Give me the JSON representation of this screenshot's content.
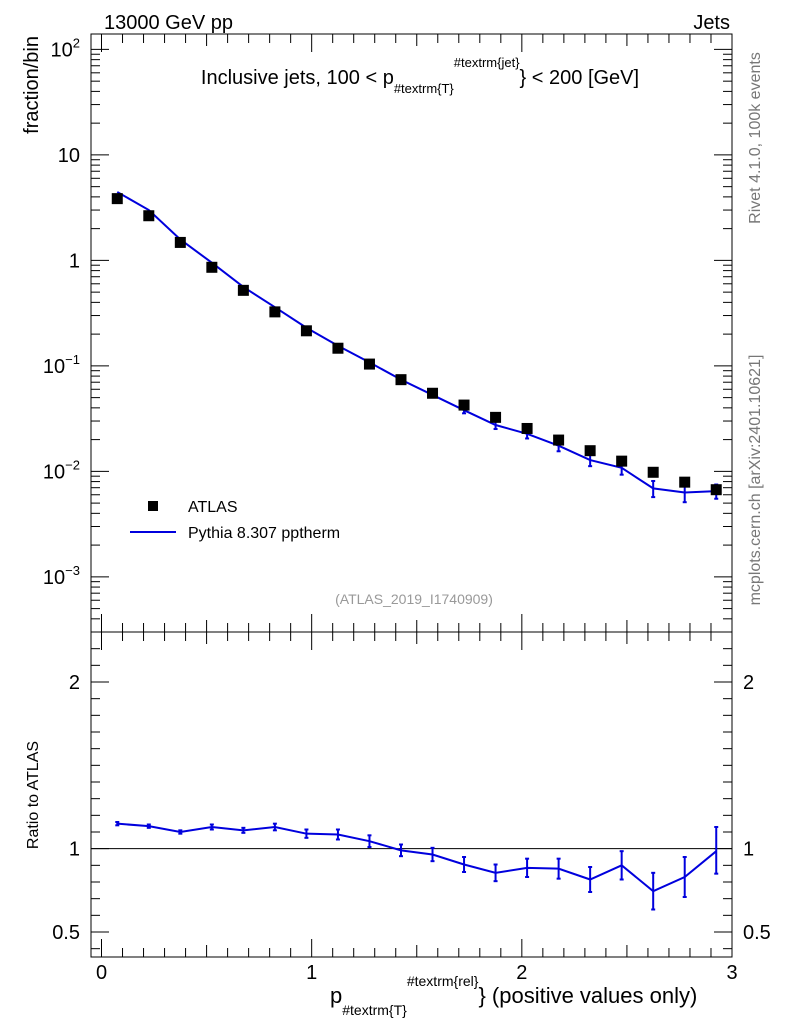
{
  "header": {
    "left": "13000 GeV pp",
    "right": "Jets"
  },
  "side_text": {
    "version": "Rivet 4.1.0,  100k events",
    "url": "mcplots.cern.ch [arXiv:2401.10621]"
  },
  "colors": {
    "data": "#000000",
    "mc": "#0000dd",
    "ref_line": "#000000",
    "analysis_label": "#999999"
  },
  "chart_data": [
    {
      "type": "scatter",
      "panel": "main",
      "scale": "log",
      "title": "Inclusive jets, 100 < p_{#textrm{T}}^{#textrm{jet}} < 200 [GeV]",
      "title_parts": {
        "pre": "Inclusive jets, 100 < p",
        "sub": "#textrm{T}",
        "sup": "#textrm{jet}",
        "post": "} < 200 [GeV]"
      },
      "ylabel": "fraction/bin",
      "ylim": [
        0.0003,
        140
      ],
      "xlim": [
        -0.05,
        3.0
      ],
      "analysis": "(ATLAS_2019_I1740909)",
      "y_ticks": [
        {
          "v": 0.001,
          "base": "10",
          "exp": "−3"
        },
        {
          "v": 0.01,
          "base": "10",
          "exp": "−2"
        },
        {
          "v": 0.1,
          "base": "10",
          "exp": "−1"
        },
        {
          "v": 1,
          "base": "1",
          "exp": ""
        },
        {
          "v": 10,
          "base": "10",
          "exp": ""
        },
        {
          "v": 100,
          "base": "10",
          "exp": "2"
        }
      ],
      "legend": [
        {
          "label": "ATLAS",
          "marker": "square"
        },
        {
          "label": "Pythia 8.307 pptherm",
          "marker": "line"
        }
      ],
      "x": [
        0.075,
        0.225,
        0.375,
        0.525,
        0.675,
        0.825,
        0.975,
        1.125,
        1.275,
        1.425,
        1.575,
        1.725,
        1.875,
        2.025,
        2.175,
        2.325,
        2.475,
        2.625,
        2.775,
        2.925
      ],
      "series": [
        {
          "name": "ATLAS",
          "values": [
            3.85,
            2.65,
            1.48,
            0.86,
            0.52,
            0.325,
            0.215,
            0.147,
            0.104,
            0.074,
            0.055,
            0.0425,
            0.0325,
            0.0255,
            0.0198,
            0.0157,
            0.0125,
            0.0098,
            0.0079,
            0.0067
          ]
        },
        {
          "name": "Pythia 8.307 pptherm",
          "values": [
            4.45,
            3.0,
            1.58,
            0.95,
            0.56,
            0.36,
            0.23,
            0.155,
            0.108,
            0.074,
            0.053,
            0.038,
            0.0275,
            0.0227,
            0.0175,
            0.0128,
            0.0108,
            0.0069,
            0.0063,
            0.0065
          ],
          "err_low": [
            4.4,
            2.97,
            1.56,
            0.94,
            0.553,
            0.354,
            0.225,
            0.151,
            0.105,
            0.0715,
            0.051,
            0.0355,
            0.0252,
            0.0205,
            0.0155,
            0.0112,
            0.0093,
            0.0057,
            0.0051,
            0.0055
          ],
          "err_high": [
            4.5,
            3.03,
            1.6,
            0.96,
            0.567,
            0.366,
            0.235,
            0.159,
            0.111,
            0.0765,
            0.055,
            0.0405,
            0.0298,
            0.0249,
            0.0195,
            0.0144,
            0.0123,
            0.0081,
            0.0075,
            0.0075
          ]
        }
      ]
    },
    {
      "type": "line",
      "panel": "ratio",
      "ylabel": "Ratio to ATLAS",
      "ylim": [
        0.35,
        2.3
      ],
      "xlim": [
        -0.05,
        3.0
      ],
      "y_ticks": [
        "0.5",
        "1",
        "2"
      ],
      "x_ticks": [
        "0",
        "1",
        "2",
        "3"
      ],
      "xlabel_parts": {
        "pre": "p",
        "sub": "#textrm{T}",
        "sup": "#textrm{rel}",
        "post": "} (positive values only)"
      },
      "x": [
        0.075,
        0.225,
        0.375,
        0.525,
        0.675,
        0.825,
        0.975,
        1.125,
        1.275,
        1.425,
        1.575,
        1.725,
        1.875,
        2.025,
        2.175,
        2.325,
        2.475,
        2.625,
        2.775,
        2.925
      ],
      "series": [
        {
          "name": "Pythia 8.307 pptherm",
          "values": [
            1.15,
            1.135,
            1.1,
            1.13,
            1.11,
            1.13,
            1.09,
            1.085,
            1.045,
            0.99,
            0.965,
            0.905,
            0.855,
            0.885,
            0.88,
            0.815,
            0.9,
            0.745,
            0.83,
            0.985
          ],
          "err_low": [
            1.14,
            1.125,
            1.09,
            1.115,
            1.095,
            1.11,
            1.065,
            1.055,
            1.01,
            0.955,
            0.925,
            0.86,
            0.805,
            0.83,
            0.82,
            0.74,
            0.815,
            0.635,
            0.71,
            0.85
          ],
          "err_high": [
            1.16,
            1.145,
            1.11,
            1.145,
            1.125,
            1.15,
            1.115,
            1.115,
            1.08,
            1.025,
            1.005,
            0.95,
            0.905,
            0.94,
            0.94,
            0.89,
            0.985,
            0.855,
            0.95,
            1.13
          ]
        }
      ]
    }
  ]
}
